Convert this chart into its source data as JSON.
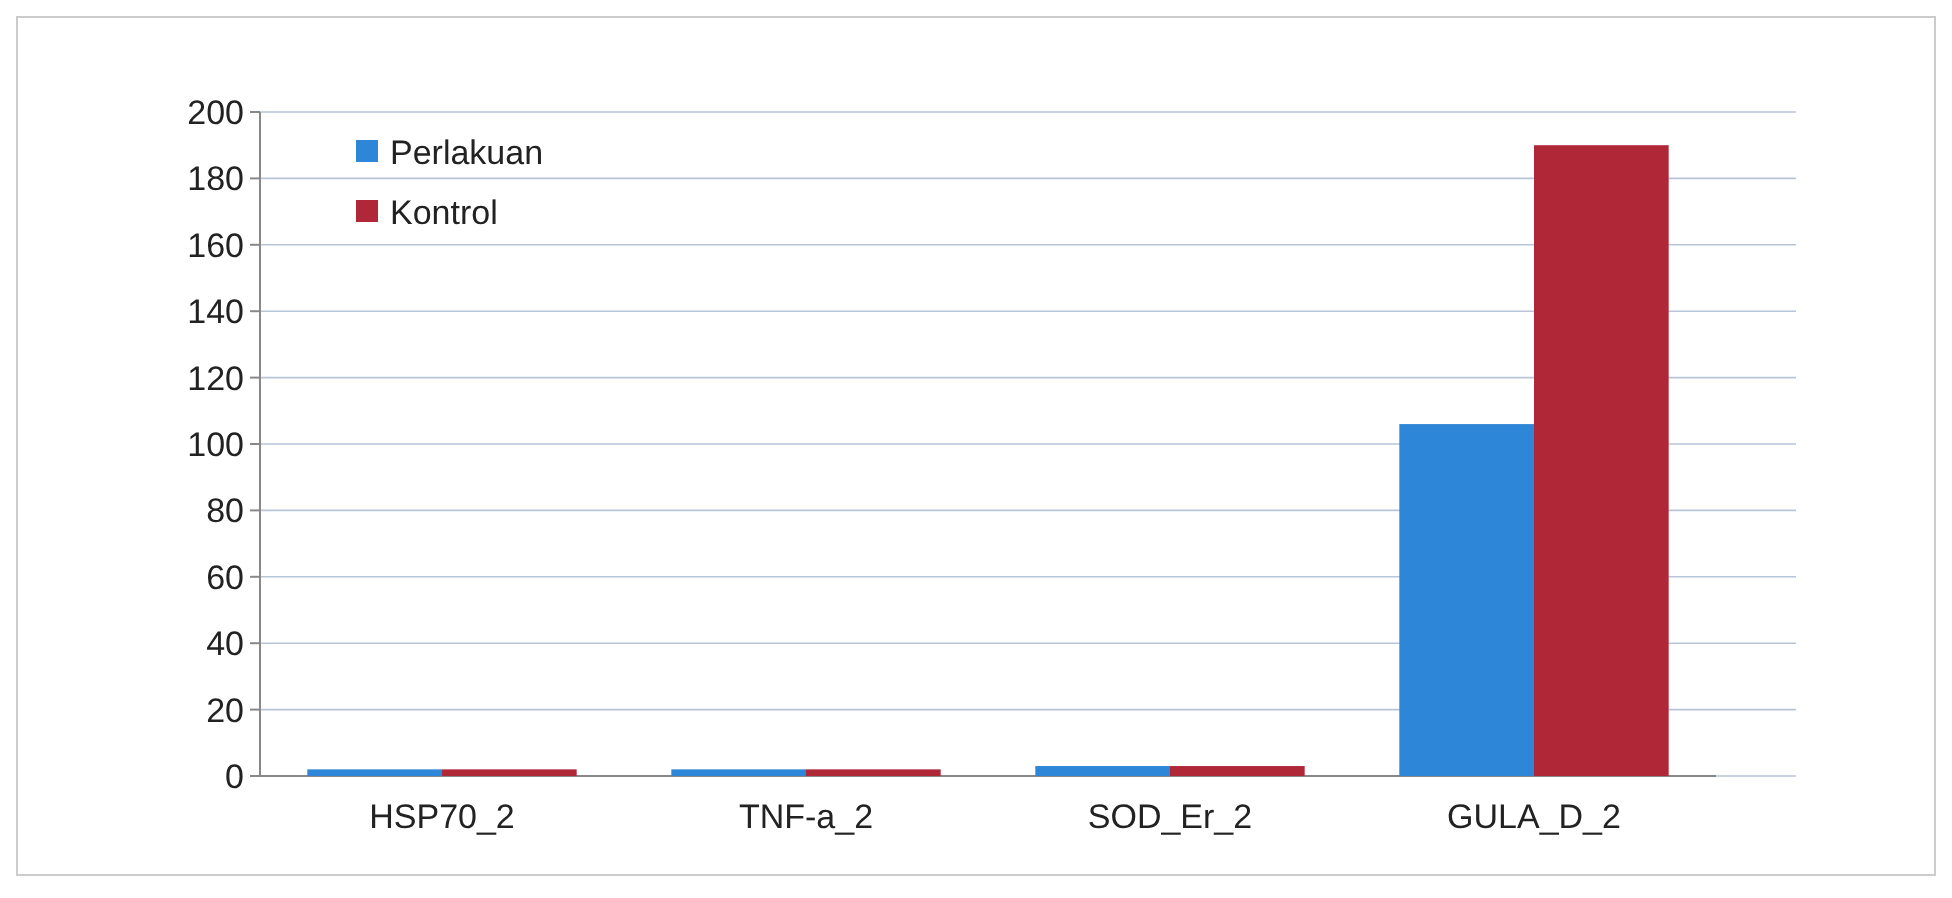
{
  "chart_data": {
    "type": "bar",
    "categories": [
      "HSP70_2",
      "TNF-a_2",
      "SOD_Er_2",
      "GULA_D_2"
    ],
    "series": [
      {
        "name": "Perlakuan",
        "color": "#2e86d8",
        "values": [
          2,
          2,
          3,
          106
        ]
      },
      {
        "name": "Kontrol",
        "color": "#b02838",
        "values": [
          2,
          2,
          3,
          190
        ]
      }
    ],
    "ylim": [
      0,
      200
    ],
    "yticks": [
      0,
      20,
      40,
      60,
      80,
      100,
      120,
      140,
      160,
      180,
      200
    ],
    "grid": "y",
    "legend": "top left"
  }
}
